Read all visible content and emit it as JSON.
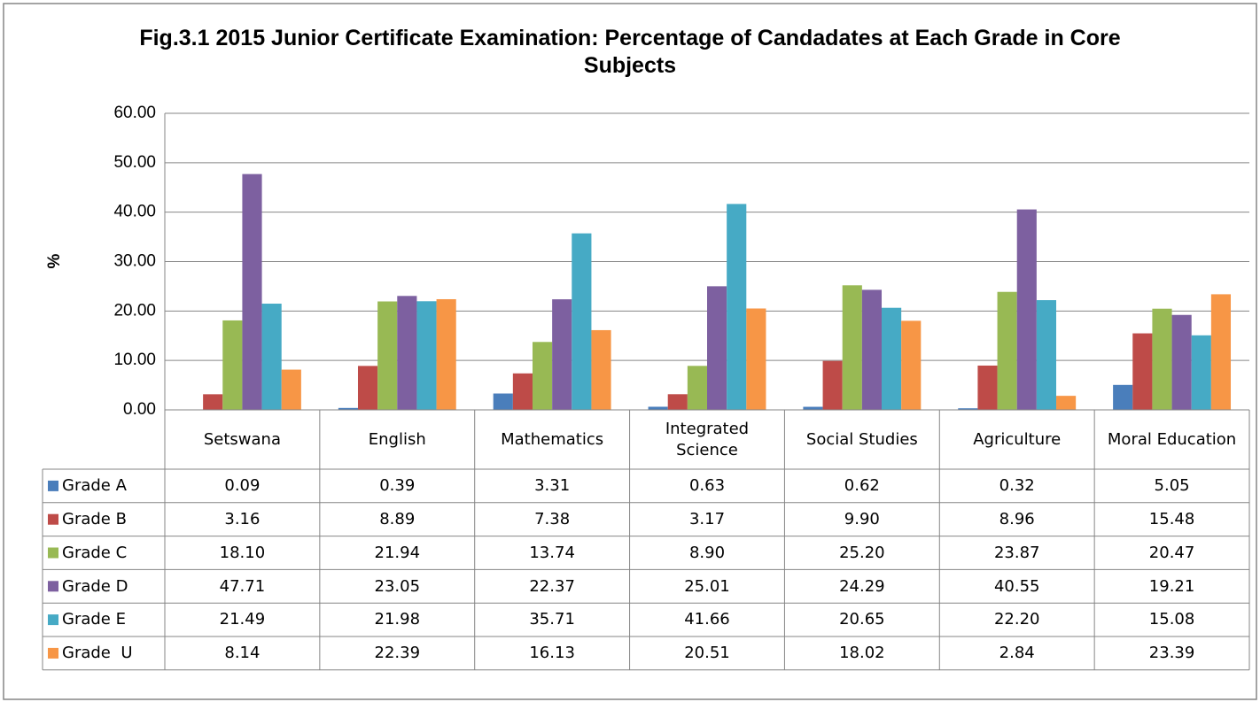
{
  "chart_data": {
    "type": "bar",
    "title": "Fig.3.1 2015 Junior Certificate Examination: Percentage of Candadates at Each Grade in Core Subjects",
    "y_label": "%",
    "categories": [
      "Setswana",
      "English",
      "Mathematics",
      "Integrated Science",
      "Social Studies",
      "Agriculture",
      "Moral Education"
    ],
    "ylim": [
      0,
      60
    ],
    "yticks": [
      {
        "value": 0,
        "label": "0.00"
      },
      {
        "value": 10,
        "label": "10.00"
      },
      {
        "value": 20,
        "label": "20.00"
      },
      {
        "value": 30,
        "label": "30.00"
      },
      {
        "value": 40,
        "label": "40.00"
      },
      {
        "value": 50,
        "label": "50.00"
      },
      {
        "value": 60,
        "label": "60.00"
      }
    ],
    "grid": true,
    "series": [
      {
        "name": "Grade A",
        "color": "#4a7ebb",
        "values": [
          0.09,
          0.39,
          3.31,
          0.63,
          0.62,
          0.32,
          5.05
        ],
        "value_labels": [
          "0.09",
          "0.39",
          "3.31",
          "0.63",
          "0.62",
          "0.32",
          "5.05"
        ]
      },
      {
        "name": "Grade B",
        "color": "#be4b48",
        "values": [
          3.16,
          8.89,
          7.38,
          3.17,
          9.9,
          8.96,
          15.48
        ],
        "value_labels": [
          "3.16",
          "8.89",
          "7.38",
          "3.17",
          "9.90",
          "8.96",
          "15.48"
        ]
      },
      {
        "name": "Grade C",
        "color": "#98b954",
        "values": [
          18.1,
          21.94,
          13.74,
          8.9,
          25.2,
          23.87,
          20.47
        ],
        "value_labels": [
          "18.10",
          "21.94",
          "13.74",
          "8.90",
          "25.20",
          "23.87",
          "20.47"
        ]
      },
      {
        "name": "Grade D",
        "color": "#7d60a0",
        "values": [
          47.71,
          23.05,
          22.37,
          25.01,
          24.29,
          40.55,
          19.21
        ],
        "value_labels": [
          "47.71",
          "23.05",
          "22.37",
          "25.01",
          "24.29",
          "40.55",
          "19.21"
        ]
      },
      {
        "name": "Grade E",
        "color": "#46aac5",
        "values": [
          21.49,
          21.98,
          35.71,
          41.66,
          20.65,
          22.2,
          15.08
        ],
        "value_labels": [
          "21.49",
          "21.98",
          "35.71",
          "41.66",
          "20.65",
          "22.20",
          "15.08"
        ]
      },
      {
        "name": "Grade  U",
        "color": "#f79646",
        "values": [
          8.14,
          22.39,
          16.13,
          20.51,
          18.02,
          2.84,
          23.39
        ],
        "value_labels": [
          "8.14",
          "22.39",
          "16.13",
          "20.51",
          "18.02",
          "2.84",
          "23.39"
        ]
      }
    ]
  }
}
